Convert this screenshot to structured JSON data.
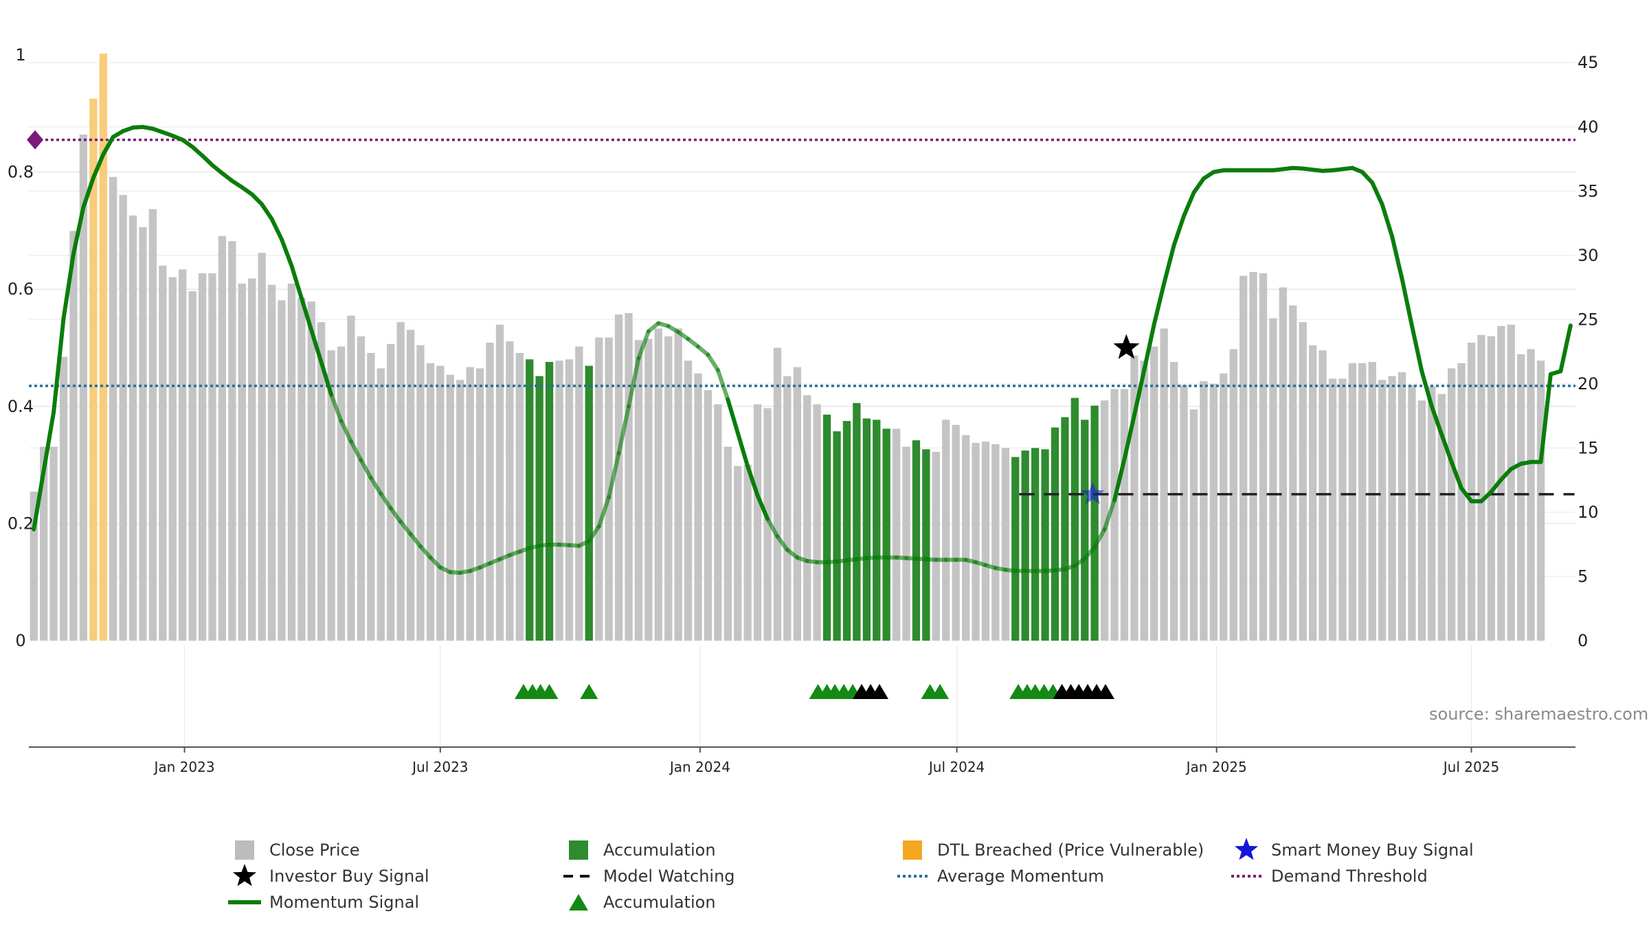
{
  "chart_data": {
    "type": "bar",
    "title": "",
    "source": "source: sharemaestro.com",
    "left_axis": {
      "ticks": [
        "0",
        "0.2",
        "0.4",
        "0.6",
        "0.8",
        "1"
      ],
      "values": [
        0,
        0.2,
        0.4,
        0.6,
        0.8,
        1
      ],
      "range": [
        0,
        1
      ]
    },
    "right_axis": {
      "ticks": [
        "0",
        "5",
        "10",
        "15",
        "20",
        "25",
        "30",
        "35",
        "40",
        "45"
      ],
      "values": [
        0,
        5,
        10,
        15,
        20,
        25,
        30,
        35,
        40,
        45
      ],
      "range": [
        0,
        45.6
      ]
    },
    "x_axis": {
      "labels": [
        "Jan 2023",
        "Jul 2023",
        "Jan 2024",
        "Jul 2024",
        "Jan 2025",
        "Jul 2025"
      ],
      "label_weeks": [
        15.2,
        41,
        67.2,
        93.1,
        119.3,
        145
      ],
      "total_weeks": 156
    },
    "colors": {
      "close": "#c4c4c4",
      "accumulation": "#2e8b2e",
      "dtl": "#f8cc7a",
      "momentum": "#0a7d0a",
      "avg_line": "#2a6d96",
      "demand_line": "#7a1a7a",
      "watch_line": "#222222",
      "smart_money": "#1616d8",
      "investor": "#000000"
    },
    "close_prices": [
      11.6,
      15.1,
      15.1,
      22.1,
      31.9,
      39.4,
      42.2,
      45.7,
      36.1,
      34.7,
      33.1,
      32.2,
      33.6,
      29.2,
      28.3,
      28.9,
      27.2,
      28.6,
      28.6,
      31.5,
      31.1,
      27.8,
      28.2,
      30.2,
      27.7,
      26.5,
      27.8,
      26.7,
      26.4,
      24.8,
      22.6,
      22.9,
      25.3,
      23.7,
      22.4,
      21.2,
      23.1,
      24.8,
      24.2,
      23.0,
      21.6,
      21.4,
      20.7,
      20.3,
      21.3,
      21.2,
      23.2,
      24.6,
      23.3,
      22.4,
      21.9,
      20.6,
      21.7,
      21.8,
      21.9,
      22.9,
      21.4,
      23.6,
      23.6,
      25.4,
      25.5,
      23.4,
      23.5,
      24.3,
      23.7,
      24.3,
      21.8,
      20.8,
      19.5,
      18.4,
      15.1,
      13.6,
      13.7,
      18.4,
      18.1,
      22.8,
      20.6,
      21.3,
      19.1,
      18.4,
      17.6,
      16.3,
      17.1,
      18.5,
      17.3,
      17.2,
      16.5,
      16.5,
      15.1,
      15.6,
      14.9,
      14.7,
      17.2,
      16.8,
      16.0,
      15.4,
      15.5,
      15.3,
      15.0,
      14.3,
      14.8,
      15.0,
      14.9,
      16.6,
      17.4,
      18.9,
      17.2,
      18.3,
      18.7,
      19.6,
      19.6,
      22.2,
      21.8,
      22.9,
      24.3,
      21.7,
      19.9,
      18.0,
      20.2,
      20.0,
      20.8,
      22.7,
      28.4,
      28.7,
      28.6,
      25.1,
      27.5,
      26.1,
      24.8,
      23.0,
      22.6,
      20.4,
      20.4,
      21.6,
      21.6,
      21.7,
      20.3,
      20.6,
      20.9,
      19.9,
      18.7,
      19.8,
      19.2,
      21.2,
      21.6,
      23.2,
      23.8,
      23.7,
      24.5,
      24.6,
      22.3,
      22.7,
      21.8
    ],
    "accumulation_weeks": [
      50,
      51,
      52,
      56,
      80,
      81,
      82,
      83,
      84,
      85,
      86,
      89,
      90,
      99,
      100,
      101,
      102,
      103,
      104,
      105,
      106,
      107
    ],
    "dtl_weeks": [
      6,
      7
    ],
    "momentum": {
      "weeks": [
        0,
        1,
        2,
        3,
        4,
        5,
        6,
        7,
        8,
        9,
        10,
        11,
        12,
        13,
        14,
        15,
        16,
        17,
        18,
        19,
        20,
        21,
        22,
        23,
        24,
        25,
        26,
        27,
        28,
        29,
        30,
        31,
        32,
        33,
        34,
        35,
        36,
        37,
        38,
        39,
        40,
        41,
        42,
        43,
        44,
        45,
        46,
        47,
        48,
        49,
        50,
        51,
        52,
        53,
        54,
        55,
        56,
        57,
        58,
        59,
        60,
        61,
        62,
        63,
        64,
        65,
        66,
        67,
        68,
        69,
        70,
        71,
        72,
        73,
        74,
        75,
        76,
        77,
        78,
        79,
        80,
        81,
        82,
        83,
        84,
        85,
        86,
        87,
        88,
        89,
        90,
        91,
        92,
        93,
        94,
        95,
        96,
        97,
        98,
        99,
        100,
        101,
        102,
        103,
        104,
        105,
        106,
        107,
        108,
        109,
        110,
        111,
        112,
        113,
        114,
        115,
        116,
        117,
        118,
        119,
        120,
        121,
        122,
        123,
        124,
        125,
        126,
        127,
        128,
        129,
        130,
        131,
        132,
        133,
        134,
        135,
        136,
        137,
        138,
        139,
        140,
        141,
        142,
        143,
        144,
        145,
        146,
        147,
        148,
        149,
        150,
        151,
        152,
        153,
        154,
        155
      ],
      "values": [
        0.19,
        0.29,
        0.39,
        0.55,
        0.66,
        0.74,
        0.79,
        0.83,
        0.86,
        0.87,
        0.876,
        0.877,
        0.874,
        0.868,
        0.862,
        0.855,
        0.843,
        0.828,
        0.812,
        0.798,
        0.785,
        0.774,
        0.762,
        0.745,
        0.72,
        0.685,
        0.64,
        0.585,
        0.53,
        0.475,
        0.42,
        0.375,
        0.34,
        0.308,
        0.278,
        0.251,
        0.226,
        0.203,
        0.182,
        0.161,
        0.142,
        0.125,
        0.117,
        0.116,
        0.119,
        0.125,
        0.132,
        0.139,
        0.146,
        0.152,
        0.158,
        0.162,
        0.164,
        0.164,
        0.163,
        0.162,
        0.17,
        0.195,
        0.245,
        0.32,
        0.4,
        0.482,
        0.528,
        0.542,
        0.537,
        0.527,
        0.515,
        0.502,
        0.488,
        0.462,
        0.412,
        0.355,
        0.298,
        0.248,
        0.208,
        0.178,
        0.155,
        0.142,
        0.136,
        0.134,
        0.134,
        0.135,
        0.137,
        0.139,
        0.141,
        0.142,
        0.142,
        0.142,
        0.141,
        0.14,
        0.139,
        0.138,
        0.138,
        0.138,
        0.138,
        0.134,
        0.129,
        0.124,
        0.121,
        0.119,
        0.119,
        0.119,
        0.119,
        0.12,
        0.122,
        0.128,
        0.14,
        0.16,
        0.19,
        0.24,
        0.31,
        0.385,
        0.462,
        0.54,
        0.61,
        0.675,
        0.725,
        0.765,
        0.789,
        0.8,
        0.803,
        0.803,
        0.803,
        0.803,
        0.803,
        0.803,
        0.805,
        0.807,
        0.806,
        0.804,
        0.802,
        0.803,
        0.805,
        0.807,
        0.8,
        0.782,
        0.745,
        0.69,
        0.618,
        0.538,
        0.46,
        0.4,
        0.352,
        0.305,
        0.26,
        0.238,
        0.238,
        0.254,
        0.275,
        0.293,
        0.302,
        0.305,
        0.305,
        0.455,
        0.46,
        0.538
      ],
      "faded_ranges": [
        [
          30,
          70
        ],
        [
          74,
          109
        ]
      ]
    },
    "average_momentum": 0.435,
    "demand_threshold": 0.855,
    "model_watching": {
      "level": 0.25,
      "from_week": 99.4,
      "to_week": 155.4
    },
    "smart_money_signal": {
      "week": 106.8,
      "value": 0.25
    },
    "investor_buy_signal": {
      "week": 110.2,
      "value": 0.5
    },
    "accumulation_triangles": {
      "green": [
        49.4,
        50.3,
        51.1,
        52.0,
        56.0,
        79.1,
        80.0,
        80.8,
        81.7,
        82.6,
        90.4,
        91.4,
        99.3,
        100.2,
        101.0,
        101.9,
        102.8
      ],
      "black": [
        83.5,
        84.4,
        85.3,
        103.7,
        104.6,
        105.4,
        106.3,
        107.2,
        108.1
      ]
    },
    "legend": [
      {
        "label": "Close Price",
        "kind": "gray-square"
      },
      {
        "label": "Accumulation",
        "kind": "green-square"
      },
      {
        "label": "DTL Breached (Price Vulnerable)",
        "kind": "orange-square"
      },
      {
        "label": "Smart Money Buy Signal",
        "kind": "blue-star"
      },
      {
        "label": "Investor Buy Signal",
        "kind": "black-star"
      },
      {
        "label": "Model Watching",
        "kind": "black-dash"
      },
      {
        "label": "Average Momentum",
        "kind": "blue-dot"
      },
      {
        "label": "Demand Threshold",
        "kind": "purple-dot"
      },
      {
        "label": "Momentum Signal",
        "kind": "green-line"
      },
      {
        "label": "Accumulation",
        "kind": "green-triangle"
      }
    ]
  }
}
